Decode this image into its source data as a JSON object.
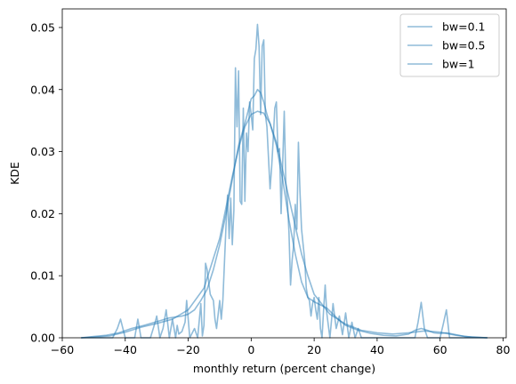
{
  "chart_data": {
    "type": "line",
    "title": "",
    "xlabel": "monthly return (percent change)",
    "ylabel": "KDE",
    "xlim": [
      -60,
      81
    ],
    "ylim": [
      0,
      0.053
    ],
    "xticks": [
      -60,
      -40,
      -20,
      0,
      20,
      40,
      60,
      80
    ],
    "yticks": [
      0.0,
      0.01,
      0.02,
      0.03,
      0.04,
      0.05
    ],
    "ytick_labels": [
      "0.00",
      "0.01",
      "0.02",
      "0.03",
      "0.04",
      "0.05"
    ],
    "grid": false,
    "legend_position": "top-right",
    "line_color": "#1f77b4",
    "line_opacity": 0.5,
    "series": [
      {
        "name": "bw=0.1",
        "x": [
          -54,
          -46,
          -44,
          -42.5,
          -41.5,
          -40,
          -37,
          -36,
          -35,
          -34,
          -32,
          -30.5,
          -30,
          -29,
          -28,
          -27,
          -26,
          -25,
          -24,
          -23.5,
          -23,
          -22,
          -21,
          -20.5,
          -20,
          -19.5,
          -18,
          -17,
          -16,
          -15.5,
          -15,
          -14.5,
          -14,
          -13,
          -12,
          -11.5,
          -11,
          -10,
          -9.5,
          -9,
          -8,
          -7.5,
          -7,
          -6.5,
          -6,
          -5.5,
          -5,
          -4.5,
          -4,
          -3.5,
          -3,
          -2.5,
          -2,
          -1.5,
          -1,
          -0.5,
          0,
          0.5,
          1,
          1.5,
          2,
          2.5,
          3,
          3.5,
          4,
          4.5,
          5,
          5.5,
          6,
          6.5,
          7,
          7.5,
          8,
          8.5,
          9,
          9.5,
          10,
          10.5,
          11,
          11.5,
          12,
          12.5,
          13,
          13.5,
          14,
          14.5,
          15,
          15.5,
          16,
          17,
          17.5,
          18,
          18.5,
          19,
          19.5,
          20,
          20.5,
          21,
          21.5,
          22,
          22.5,
          23,
          23.5,
          24,
          25,
          26,
          27,
          28,
          29,
          30,
          31,
          32,
          33,
          34,
          35,
          36,
          37,
          38,
          39,
          40,
          42,
          44,
          46,
          48,
          50,
          52,
          53,
          54,
          55,
          56,
          58,
          60,
          61,
          62,
          63,
          64,
          66,
          70,
          75
        ],
        "y": [
          0.0,
          0.0,
          0.0,
          0.0015,
          0.003,
          0.0,
          0.0,
          0.003,
          0.0,
          0.0,
          0.0,
          0.0025,
          0.0035,
          0.0,
          0.0015,
          0.0045,
          0.0,
          0.003,
          0.0,
          0.002,
          0.0006,
          0.001,
          0.0025,
          0.006,
          0.003,
          0.0,
          0.0015,
          0.0,
          0.0055,
          0.0003,
          0.002,
          0.012,
          0.011,
          0.007,
          0.006,
          0.003,
          0.0015,
          0.006,
          0.003,
          0.006,
          0.018,
          0.023,
          0.016,
          0.0225,
          0.015,
          0.0205,
          0.0435,
          0.034,
          0.043,
          0.022,
          0.0215,
          0.037,
          0.022,
          0.033,
          0.03,
          0.038,
          0.036,
          0.0335,
          0.045,
          0.0465,
          0.0505,
          0.047,
          0.036,
          0.047,
          0.048,
          0.036,
          0.034,
          0.029,
          0.024,
          0.0275,
          0.032,
          0.037,
          0.038,
          0.03,
          0.0305,
          0.02,
          0.028,
          0.0365,
          0.025,
          0.022,
          0.017,
          0.0085,
          0.0125,
          0.015,
          0.0215,
          0.0175,
          0.0315,
          0.0235,
          0.0175,
          0.0125,
          0.008,
          0.0065,
          0.006,
          0.0035,
          0.0055,
          0.0065,
          0.0045,
          0.003,
          0.0065,
          0.0015,
          0.0,
          0.0045,
          0.0085,
          0.004,
          0.0,
          0.0055,
          0.0015,
          0.0035,
          0.0005,
          0.004,
          0.0,
          0.0025,
          0.0,
          0.0015,
          0.0,
          0.0,
          0.0,
          0.0,
          0.0,
          0.0,
          0.0,
          0.0,
          0.0,
          0.0,
          0.0,
          0.0,
          0.0025,
          0.0057,
          0.0015,
          0.0,
          0.0,
          0.0,
          0.0022,
          0.0045,
          0.0,
          0.0,
          0.0,
          0.0,
          0.0
        ]
      },
      {
        "name": "bw=0.5",
        "x": [
          -54,
          -50,
          -46,
          -42,
          -38,
          -34,
          -30,
          -26,
          -22,
          -20,
          -18,
          -16,
          -14,
          -12,
          -10,
          -8,
          -6,
          -4,
          -2,
          0,
          1,
          2,
          3,
          4,
          5,
          6,
          8,
          10,
          12,
          14,
          16,
          18,
          20,
          22,
          24,
          26,
          28,
          30,
          34,
          38,
          42,
          46,
          50,
          52,
          54,
          56,
          58,
          60,
          62,
          64,
          68,
          75
        ],
        "y": [
          0.0,
          0.0002,
          0.0004,
          0.0008,
          0.0015,
          0.002,
          0.0026,
          0.0032,
          0.0035,
          0.0038,
          0.0045,
          0.006,
          0.0078,
          0.011,
          0.015,
          0.02,
          0.0255,
          0.031,
          0.0345,
          0.0385,
          0.039,
          0.04,
          0.0395,
          0.038,
          0.036,
          0.0345,
          0.031,
          0.0255,
          0.019,
          0.0135,
          0.009,
          0.0065,
          0.0058,
          0.0053,
          0.0048,
          0.0038,
          0.0028,
          0.002,
          0.0012,
          0.0007,
          0.0004,
          0.0003,
          0.0006,
          0.0012,
          0.0015,
          0.0012,
          0.0008,
          0.0007,
          0.0008,
          0.0006,
          0.0002,
          0.0
        ]
      },
      {
        "name": "bw=1",
        "x": [
          -54,
          -50,
          -45,
          -40,
          -35,
          -30,
          -25,
          -20,
          -15,
          -10,
          -8,
          -6,
          -4,
          -2,
          0,
          2,
          4,
          6,
          8,
          10,
          12,
          14,
          16,
          18,
          20,
          25,
          30,
          35,
          40,
          45,
          50,
          55,
          60,
          65,
          70,
          75
        ],
        "y": [
          0.0,
          0.0001,
          0.0003,
          0.0009,
          0.0017,
          0.0023,
          0.003,
          0.0045,
          0.008,
          0.016,
          0.021,
          0.026,
          0.0305,
          0.034,
          0.036,
          0.0365,
          0.0362,
          0.0345,
          0.0315,
          0.027,
          0.0225,
          0.018,
          0.0135,
          0.01,
          0.007,
          0.0038,
          0.0022,
          0.0012,
          0.0008,
          0.0006,
          0.0008,
          0.0011,
          0.0009,
          0.0004,
          0.0001,
          0.0
        ]
      }
    ]
  }
}
